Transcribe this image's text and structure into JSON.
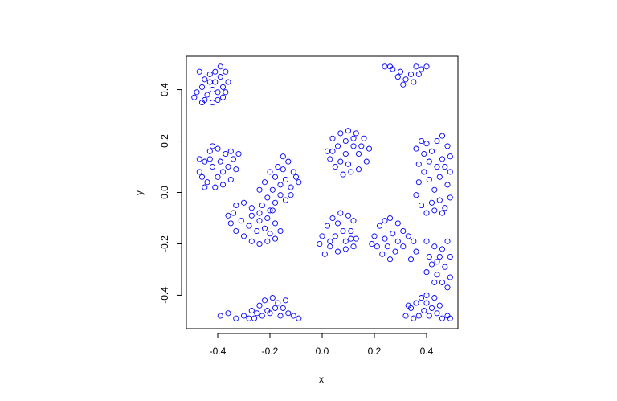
{
  "chart_data": {
    "type": "scatter",
    "title": "",
    "xlabel": "x",
    "ylabel": "y",
    "xlim": [
      -0.52,
      0.52
    ],
    "ylim": [
      -0.53,
      0.53
    ],
    "xticks": [
      -0.4,
      -0.2,
      0.0,
      0.2,
      0.4
    ],
    "xtick_labels": [
      "-0.4",
      "-0.2",
      "0.0",
      "0.2",
      "0.4"
    ],
    "yticks": [
      -0.4,
      -0.2,
      0.0,
      0.2,
      0.4
    ],
    "ytick_labels": [
      "-0.4",
      "-0.2",
      "0.0",
      "0.2",
      "0.4"
    ],
    "grid": false,
    "legend": false,
    "marker": "open-circle",
    "point_color": "#0000ff",
    "series": [
      {
        "values": [
          [
            -0.47,
            0.47
          ],
          [
            -0.45,
            0.44
          ],
          [
            -0.43,
            0.46
          ],
          [
            -0.41,
            0.43
          ],
          [
            -0.39,
            0.45
          ],
          [
            -0.37,
            0.47
          ],
          [
            -0.38,
            0.41
          ],
          [
            -0.4,
            0.39
          ],
          [
            -0.42,
            0.4
          ],
          [
            -0.44,
            0.38
          ],
          [
            -0.46,
            0.41
          ],
          [
            -0.48,
            0.39
          ],
          [
            -0.49,
            0.37
          ],
          [
            -0.45,
            0.36
          ],
          [
            -0.42,
            0.35
          ],
          [
            -0.4,
            0.36
          ],
          [
            -0.37,
            0.39
          ],
          [
            -0.36,
            0.43
          ],
          [
            -0.43,
            0.43
          ],
          [
            -0.41,
            0.47
          ],
          [
            -0.39,
            0.49
          ],
          [
            -0.46,
            0.35
          ],
          [
            -0.38,
            0.37
          ],
          [
            0.24,
            0.49
          ],
          [
            0.27,
            0.48
          ],
          [
            0.3,
            0.47
          ],
          [
            0.32,
            0.44
          ],
          [
            0.34,
            0.46
          ],
          [
            0.36,
            0.49
          ],
          [
            0.38,
            0.48
          ],
          [
            0.4,
            0.49
          ],
          [
            0.35,
            0.43
          ],
          [
            0.31,
            0.42
          ],
          [
            0.29,
            0.45
          ],
          [
            0.37,
            0.46
          ],
          [
            0.26,
            0.49
          ],
          [
            -0.47,
            0.08
          ],
          [
            -0.45,
            0.12
          ],
          [
            -0.43,
            0.16
          ],
          [
            -0.4,
            0.17
          ],
          [
            -0.37,
            0.15
          ],
          [
            -0.34,
            0.13
          ],
          [
            -0.33,
            0.09
          ],
          [
            -0.35,
            0.05
          ],
          [
            -0.38,
            0.03
          ],
          [
            -0.41,
            0.02
          ],
          [
            -0.44,
            0.04
          ],
          [
            -0.46,
            0.06
          ],
          [
            -0.42,
            0.1
          ],
          [
            -0.39,
            0.12
          ],
          [
            -0.36,
            0.1
          ],
          [
            -0.4,
            0.06
          ],
          [
            -0.43,
            0.13
          ],
          [
            -0.38,
            0.08
          ],
          [
            -0.45,
            0.02
          ],
          [
            -0.32,
            0.15
          ],
          [
            -0.35,
            0.16
          ],
          [
            -0.42,
            0.18
          ],
          [
            -0.47,
            0.13
          ],
          [
            0.02,
            0.16
          ],
          [
            0.04,
            0.21
          ],
          [
            0.07,
            0.23
          ],
          [
            0.1,
            0.24
          ],
          [
            0.13,
            0.23
          ],
          [
            0.16,
            0.21
          ],
          [
            0.18,
            0.17
          ],
          [
            0.17,
            0.12
          ],
          [
            0.14,
            0.09
          ],
          [
            0.11,
            0.08
          ],
          [
            0.08,
            0.07
          ],
          [
            0.05,
            0.1
          ],
          [
            0.03,
            0.13
          ],
          [
            0.09,
            0.15
          ],
          [
            0.12,
            0.18
          ],
          [
            0.06,
            0.18
          ],
          [
            0.14,
            0.15
          ],
          [
            0.1,
            0.11
          ],
          [
            0.07,
            0.12
          ],
          [
            0.15,
            0.18
          ],
          [
            0.04,
            0.16
          ],
          [
            0.12,
            0.21
          ],
          [
            0.09,
            0.2
          ],
          [
            0.36,
            0.17
          ],
          [
            0.38,
            0.2
          ],
          [
            0.4,
            0.19
          ],
          [
            0.42,
            0.16
          ],
          [
            0.44,
            0.2
          ],
          [
            0.46,
            0.22
          ],
          [
            0.48,
            0.18
          ],
          [
            0.49,
            0.14
          ],
          [
            0.47,
            0.1
          ],
          [
            0.45,
            0.06
          ],
          [
            0.48,
            0.03
          ],
          [
            0.49,
            -0.02
          ],
          [
            0.47,
            -0.06
          ],
          [
            0.45,
            -0.03
          ],
          [
            0.43,
            0.01
          ],
          [
            0.41,
            0.05
          ],
          [
            0.39,
            0.08
          ],
          [
            0.37,
            0.04
          ],
          [
            0.36,
            -0.01
          ],
          [
            0.38,
            -0.05
          ],
          [
            0.4,
            -0.08
          ],
          [
            0.42,
            -0.04
          ],
          [
            0.44,
            0.1
          ],
          [
            0.46,
            0.13
          ],
          [
            0.41,
            0.12
          ],
          [
            0.39,
            0.15
          ],
          [
            0.43,
            -0.07
          ],
          [
            0.46,
            -0.08
          ],
          [
            0.49,
            0.08
          ],
          [
            0.37,
            0.11
          ],
          [
            -0.17,
            0.1
          ],
          [
            -0.15,
            0.14
          ],
          [
            -0.13,
            0.12
          ],
          [
            -0.11,
            0.08
          ],
          [
            -0.09,
            0.04
          ],
          [
            -0.12,
            0.02
          ],
          [
            -0.14,
            0.05
          ],
          [
            -0.16,
            0.03
          ],
          [
            -0.19,
            0.01
          ],
          [
            -0.21,
            -0.02
          ],
          [
            -0.23,
            -0.05
          ],
          [
            -0.2,
            -0.07
          ],
          [
            -0.18,
            -0.04
          ],
          [
            -0.16,
            -0.01
          ],
          [
            -0.14,
            -0.03
          ],
          [
            -0.18,
            0.06
          ],
          [
            -0.2,
            0.08
          ],
          [
            -0.22,
            0.04
          ],
          [
            -0.12,
            -0.01
          ],
          [
            -0.1,
            0.06
          ],
          [
            -0.15,
            0.09
          ],
          [
            -0.24,
            0.01
          ],
          [
            -0.36,
            -0.09
          ],
          [
            -0.33,
            -0.05
          ],
          [
            -0.3,
            -0.04
          ],
          [
            -0.27,
            -0.06
          ],
          [
            -0.24,
            -0.08
          ],
          [
            -0.21,
            -0.1
          ],
          [
            -0.18,
            -0.12
          ],
          [
            -0.16,
            -0.15
          ],
          [
            -0.18,
            -0.18
          ],
          [
            -0.21,
            -0.19
          ],
          [
            -0.24,
            -0.2
          ],
          [
            -0.27,
            -0.19
          ],
          [
            -0.3,
            -0.17
          ],
          [
            -0.33,
            -0.15
          ],
          [
            -0.35,
            -0.12
          ],
          [
            -0.31,
            -0.11
          ],
          [
            -0.28,
            -0.13
          ],
          [
            -0.25,
            -0.15
          ],
          [
            -0.22,
            -0.14
          ],
          [
            -0.27,
            -0.09
          ],
          [
            -0.24,
            -0.11
          ],
          [
            -0.19,
            -0.07
          ],
          [
            -0.34,
            -0.08
          ],
          [
            -0.2,
            -0.16
          ],
          [
            0.0,
            -0.17
          ],
          [
            0.02,
            -0.13
          ],
          [
            0.04,
            -0.1
          ],
          [
            0.07,
            -0.08
          ],
          [
            0.1,
            -0.09
          ],
          [
            0.12,
            -0.11
          ],
          [
            0.11,
            -0.15
          ],
          [
            0.13,
            -0.18
          ],
          [
            0.12,
            -0.21
          ],
          [
            0.09,
            -0.22
          ],
          [
            0.06,
            -0.23
          ],
          [
            0.03,
            -0.21
          ],
          [
            0.01,
            -0.24
          ],
          [
            0.05,
            -0.17
          ],
          [
            0.08,
            -0.15
          ],
          [
            0.06,
            -0.12
          ],
          [
            0.03,
            -0.19
          ],
          [
            0.09,
            -0.19
          ],
          [
            0.11,
            -0.18
          ],
          [
            -0.01,
            -0.2
          ],
          [
            0.2,
            -0.17
          ],
          [
            0.22,
            -0.13
          ],
          [
            0.24,
            -0.11
          ],
          [
            0.26,
            -0.1
          ],
          [
            0.29,
            -0.12
          ],
          [
            0.31,
            -0.15
          ],
          [
            0.33,
            -0.17
          ],
          [
            0.35,
            -0.19
          ],
          [
            0.31,
            -0.21
          ],
          [
            0.28,
            -0.23
          ],
          [
            0.26,
            -0.26
          ],
          [
            0.23,
            -0.24
          ],
          [
            0.21,
            -0.21
          ],
          [
            0.24,
            -0.18
          ],
          [
            0.27,
            -0.16
          ],
          [
            0.29,
            -0.19
          ],
          [
            0.36,
            -0.23
          ],
          [
            0.34,
            -0.26
          ],
          [
            0.19,
            -0.2
          ],
          [
            0.25,
            -0.21
          ],
          [
            0.4,
            -0.19
          ],
          [
            0.43,
            -0.21
          ],
          [
            0.46,
            -0.22
          ],
          [
            0.48,
            -0.19
          ],
          [
            0.45,
            -0.25
          ],
          [
            0.42,
            -0.28
          ],
          [
            0.4,
            -0.31
          ],
          [
            0.44,
            -0.32
          ],
          [
            0.47,
            -0.29
          ],
          [
            0.49,
            -0.33
          ],
          [
            0.46,
            -0.35
          ],
          [
            0.43,
            -0.35
          ],
          [
            0.48,
            -0.37
          ],
          [
            0.41,
            -0.25
          ],
          [
            0.44,
            -0.27
          ],
          [
            0.49,
            -0.25
          ],
          [
            -0.39,
            -0.48
          ],
          [
            -0.36,
            -0.47
          ],
          [
            -0.33,
            -0.49
          ],
          [
            -0.3,
            -0.48
          ],
          [
            -0.27,
            -0.46
          ],
          [
            -0.24,
            -0.44
          ],
          [
            -0.22,
            -0.42
          ],
          [
            -0.19,
            -0.41
          ],
          [
            -0.17,
            -0.43
          ],
          [
            -0.15,
            -0.45
          ],
          [
            -0.13,
            -0.47
          ],
          [
            -0.11,
            -0.48
          ],
          [
            -0.09,
            -0.49
          ],
          [
            -0.16,
            -0.48
          ],
          [
            -0.2,
            -0.47
          ],
          [
            -0.23,
            -0.48
          ],
          [
            -0.26,
            -0.49
          ],
          [
            -0.18,
            -0.45
          ],
          [
            -0.21,
            -0.46
          ],
          [
            -0.14,
            -0.42
          ],
          [
            -0.25,
            -0.47
          ],
          [
            -0.28,
            -0.49
          ],
          [
            0.32,
            -0.48
          ],
          [
            0.34,
            -0.45
          ],
          [
            0.36,
            -0.43
          ],
          [
            0.38,
            -0.41
          ],
          [
            0.4,
            -0.43
          ],
          [
            0.42,
            -0.45
          ],
          [
            0.44,
            -0.47
          ],
          [
            0.46,
            -0.49
          ],
          [
            0.48,
            -0.48
          ],
          [
            0.45,
            -0.44
          ],
          [
            0.43,
            -0.41
          ],
          [
            0.39,
            -0.46
          ],
          [
            0.37,
            -0.48
          ],
          [
            0.35,
            -0.49
          ],
          [
            0.41,
            -0.48
          ],
          [
            0.49,
            -0.49
          ],
          [
            0.4,
            -0.4
          ],
          [
            0.33,
            -0.44
          ]
        ]
      }
    ]
  }
}
